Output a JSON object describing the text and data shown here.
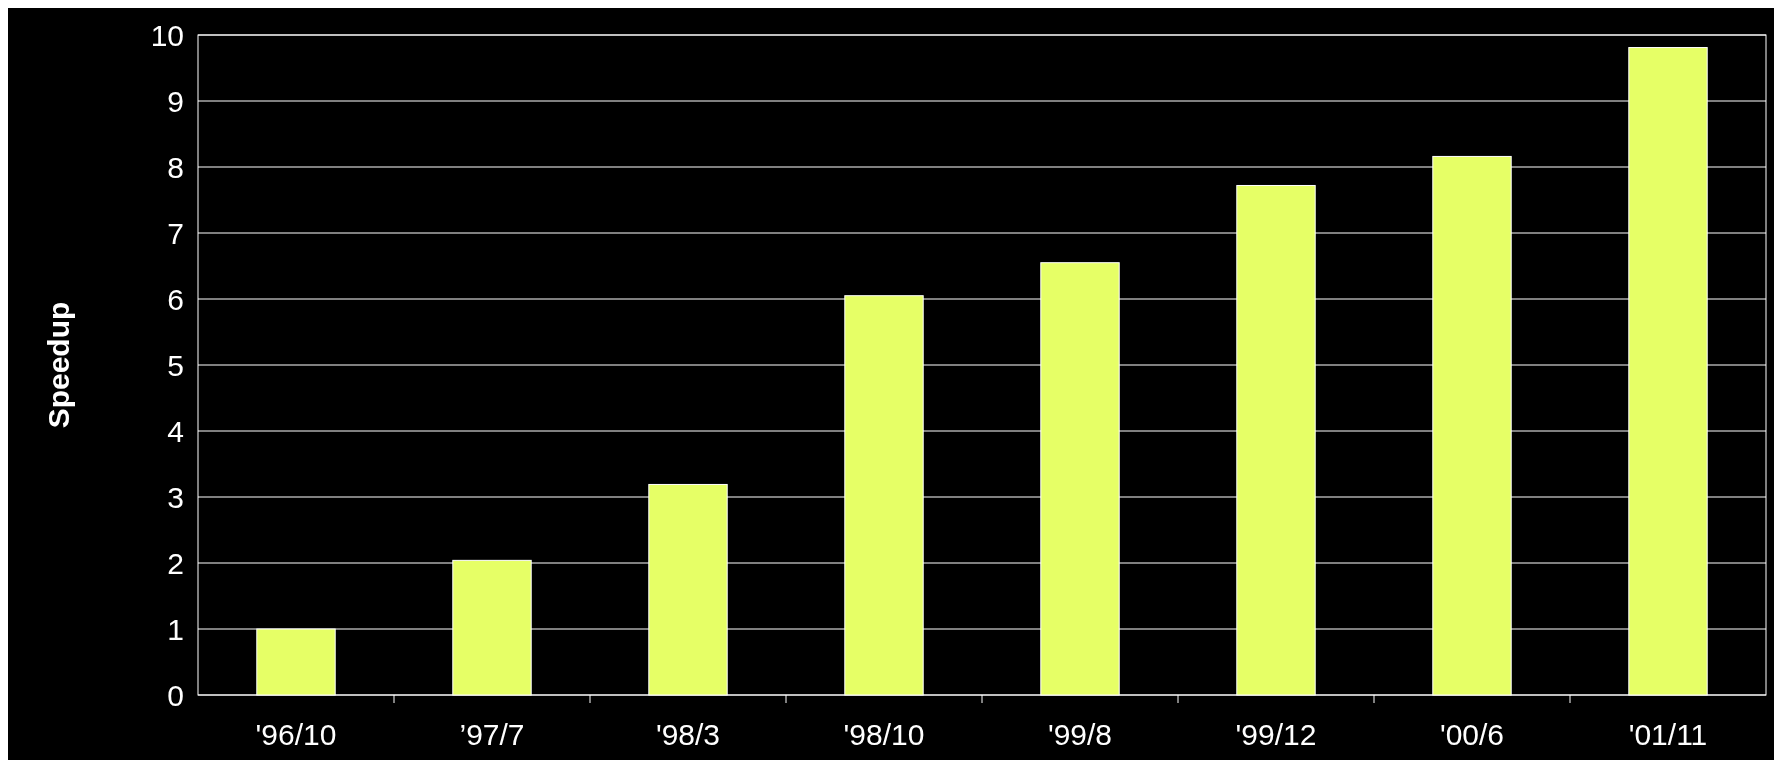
{
  "chart_data": {
    "type": "bar",
    "ylabel": "Speedup",
    "categories": [
      "'96/10",
      "’97/7",
      "'98/3",
      "'98/10",
      "'99/8",
      "'99/12",
      "'00/6",
      "'01/11"
    ],
    "values": [
      1.0,
      2.04,
      3.19,
      6.05,
      6.55,
      7.72,
      8.16,
      9.81
    ],
    "color": "#e6ff66",
    "ylim": [
      0,
      10
    ],
    "yticks": [
      0,
      1,
      2,
      3,
      4,
      5,
      6,
      7,
      8,
      9,
      10
    ],
    "grid": "y"
  }
}
